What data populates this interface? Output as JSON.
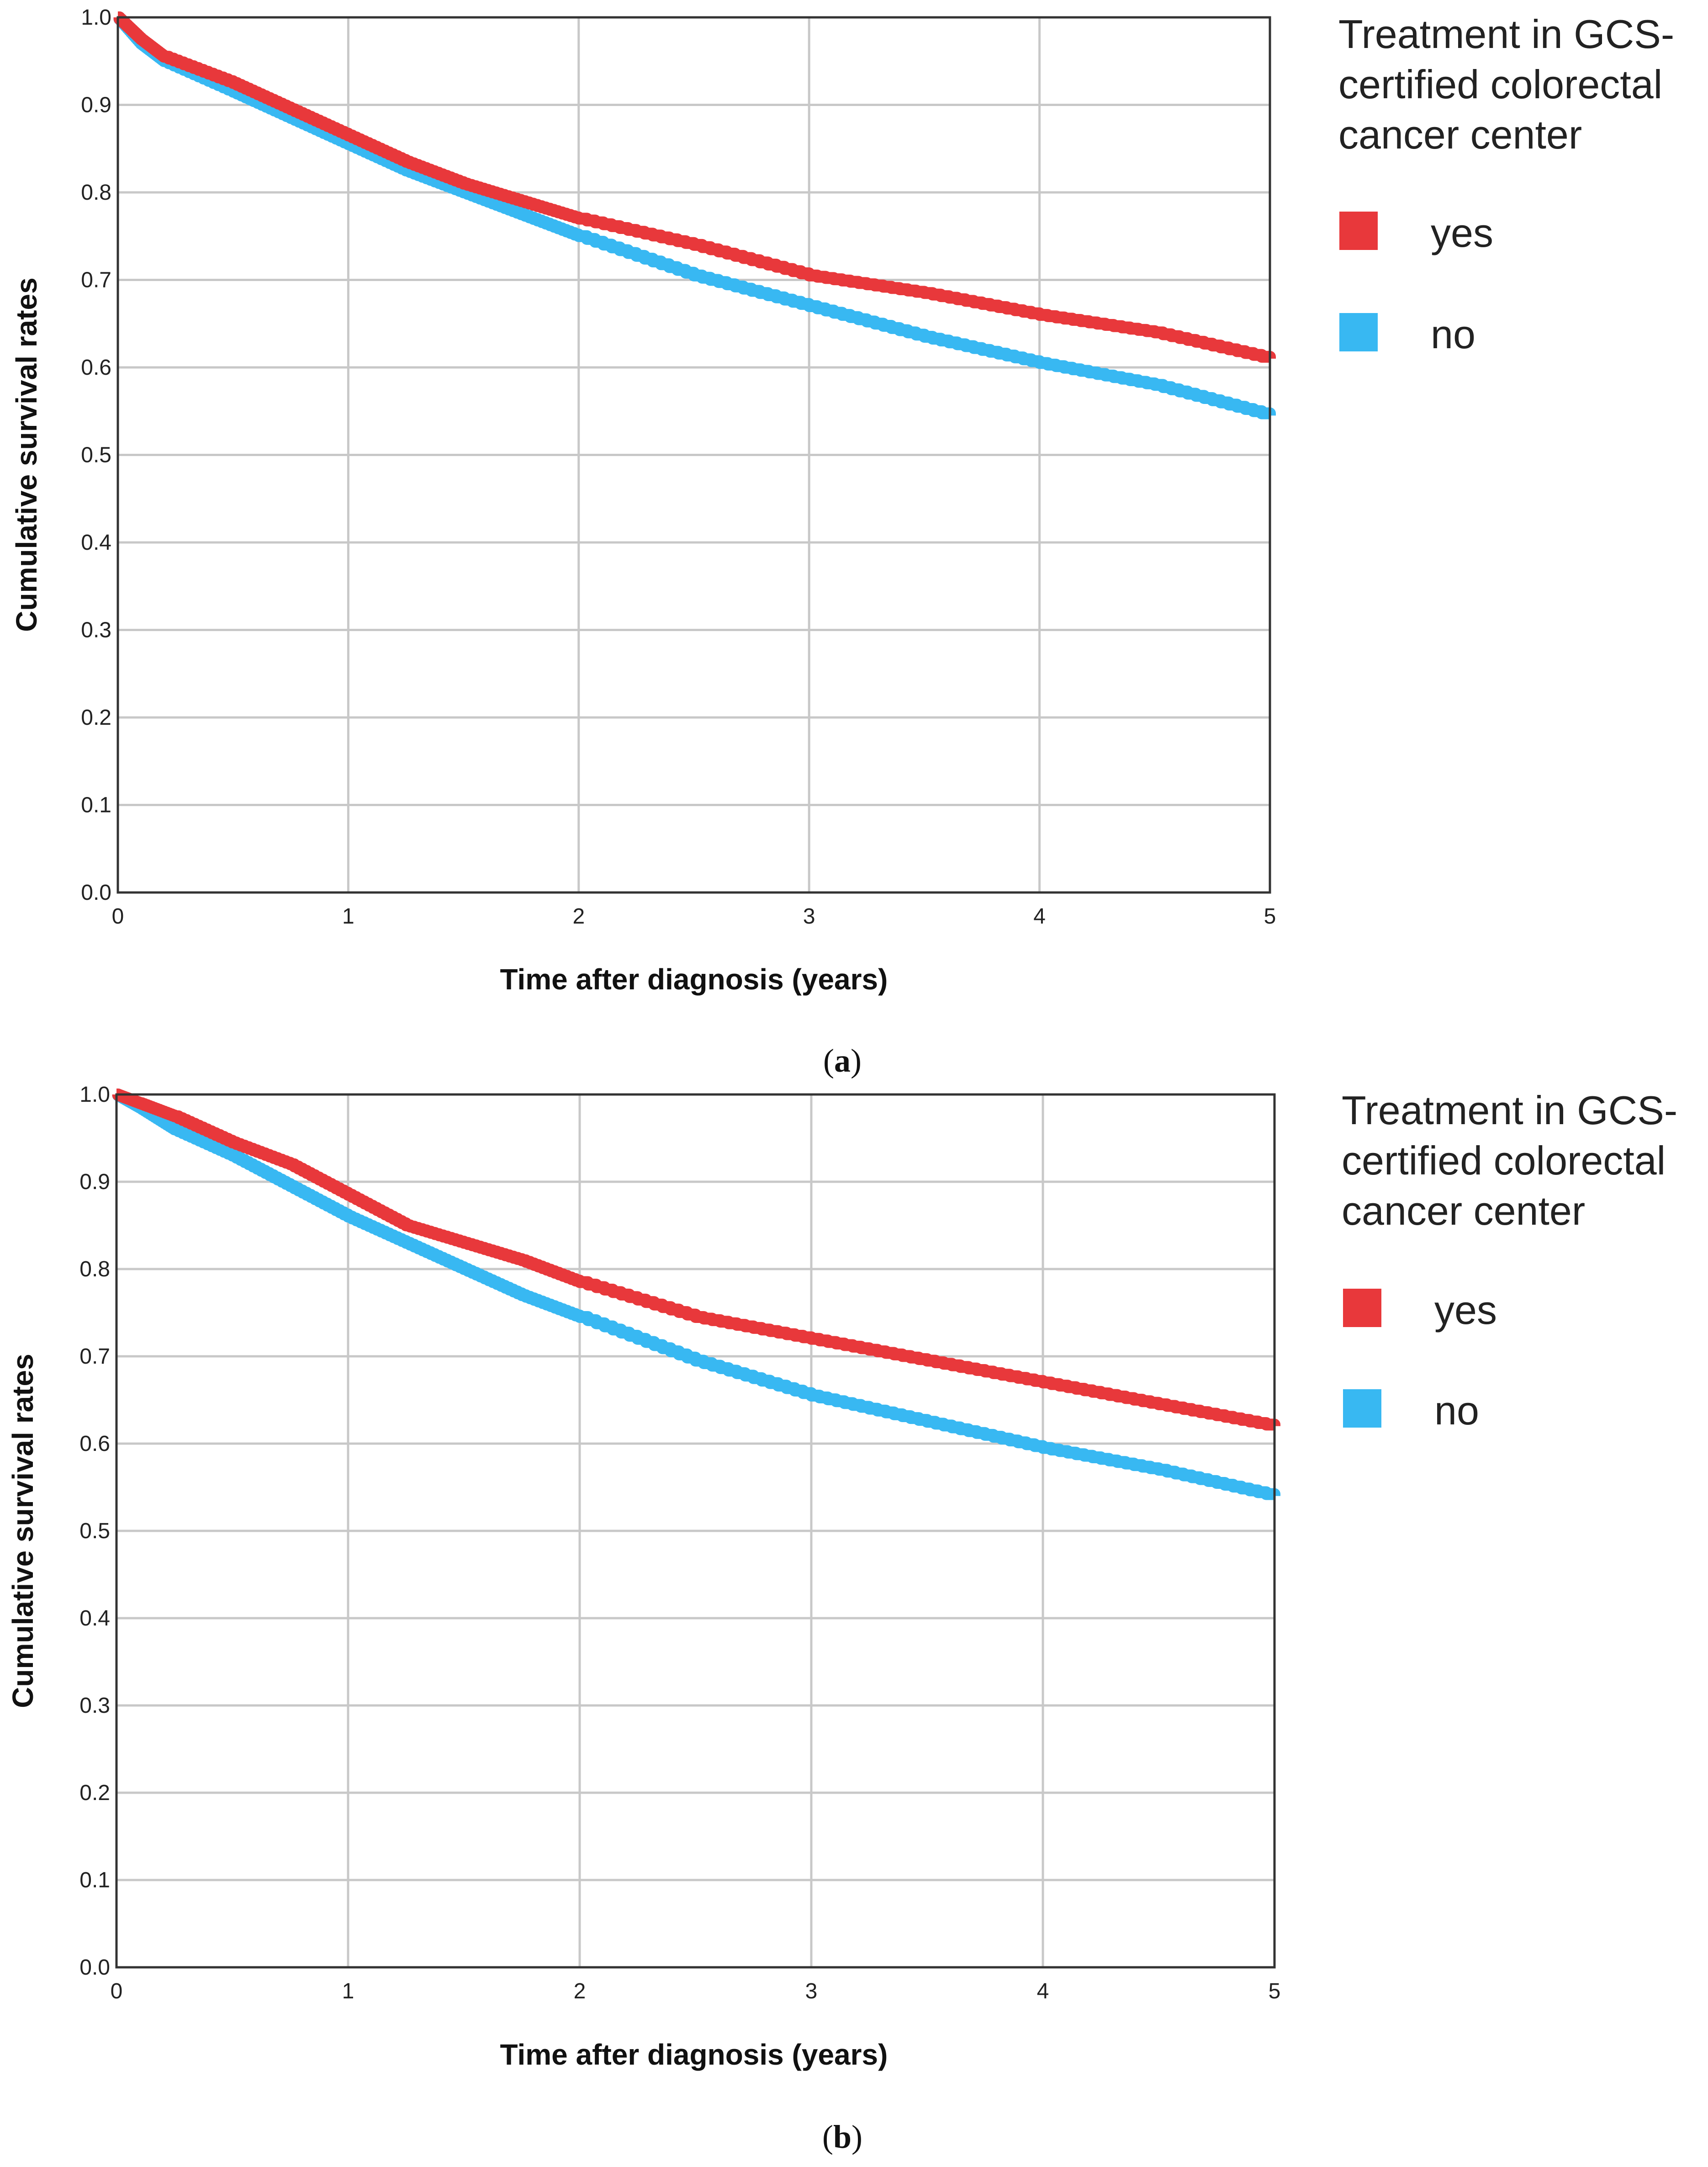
{
  "colors": {
    "yes": "#e8383b",
    "no": "#38b8f2",
    "grid": "#c8c8c8",
    "axis": "#333333"
  },
  "chart_data": [
    {
      "type": "line",
      "panel_caption": {
        "open": "(",
        "letter": "a",
        "close": ")"
      },
      "xlabel": "Time after diagnosis (years)",
      "ylabel": "Cumulative survival rates",
      "xlim": [
        0,
        5
      ],
      "ylim": [
        0,
        1
      ],
      "x_ticks": [
        "0",
        "1",
        "2",
        "3",
        "4",
        "5"
      ],
      "y_ticks": [
        "0.0",
        "0.1",
        "0.2",
        "0.3",
        "0.4",
        "0.5",
        "0.6",
        "0.7",
        "0.8",
        "0.9",
        "1.0"
      ],
      "grid": true,
      "legend": {
        "title_lines": [
          "Treatment in GCS-",
          "certified colorectal",
          "cancer center"
        ],
        "placement": "right"
      },
      "series": [
        {
          "name": "yes",
          "x": [
            0,
            0.1,
            0.2,
            0.5,
            0.75,
            1.0,
            1.25,
            1.5,
            1.75,
            2.0,
            2.5,
            3.0,
            3.5,
            4.0,
            4.5,
            5.0
          ],
          "values": [
            1.0,
            0.975,
            0.955,
            0.925,
            0.895,
            0.865,
            0.835,
            0.81,
            0.79,
            0.77,
            0.74,
            0.705,
            0.685,
            0.66,
            0.64,
            0.61
          ]
        },
        {
          "name": "no",
          "x": [
            0,
            0.1,
            0.2,
            0.5,
            0.75,
            1.0,
            1.25,
            1.5,
            1.75,
            2.0,
            2.5,
            3.0,
            3.5,
            4.0,
            4.5,
            5.0
          ],
          "values": [
            1.0,
            0.97,
            0.95,
            0.915,
            0.885,
            0.855,
            0.825,
            0.8,
            0.775,
            0.75,
            0.705,
            0.67,
            0.635,
            0.605,
            0.58,
            0.545
          ]
        }
      ]
    },
    {
      "type": "line",
      "panel_caption": {
        "open": "(",
        "letter": "b",
        "close": ")"
      },
      "xlabel": "Time after diagnosis (years)",
      "ylabel": "Cumulative survival rates",
      "xlim": [
        0,
        5
      ],
      "ylim": [
        0,
        1
      ],
      "x_ticks": [
        "0",
        "1",
        "2",
        "3",
        "4",
        "5"
      ],
      "y_ticks": [
        "0.0",
        "0.1",
        "0.2",
        "0.3",
        "0.4",
        "0.5",
        "0.6",
        "0.7",
        "0.8",
        "0.9",
        "1.0"
      ],
      "grid": true,
      "legend": {
        "title_lines": [
          "Treatment in GCS-",
          "certified colorectal",
          "cancer center"
        ],
        "placement": "right"
      },
      "series": [
        {
          "name": "yes",
          "x": [
            0,
            0.1,
            0.25,
            0.5,
            0.75,
            1.0,
            1.25,
            1.5,
            1.75,
            2.0,
            2.5,
            3.0,
            3.5,
            4.0,
            4.5,
            5.0
          ],
          "values": [
            1.0,
            0.99,
            0.975,
            0.945,
            0.92,
            0.885,
            0.85,
            0.83,
            0.81,
            0.785,
            0.745,
            0.72,
            0.695,
            0.67,
            0.645,
            0.62
          ]
        },
        {
          "name": "no",
          "x": [
            0,
            0.1,
            0.25,
            0.5,
            0.75,
            1.0,
            1.25,
            1.5,
            1.75,
            2.0,
            2.5,
            3.0,
            3.5,
            4.0,
            4.5,
            5.0
          ],
          "values": [
            1.0,
            0.985,
            0.96,
            0.93,
            0.895,
            0.86,
            0.83,
            0.8,
            0.77,
            0.745,
            0.695,
            0.655,
            0.625,
            0.595,
            0.57,
            0.54
          ]
        }
      ]
    }
  ]
}
